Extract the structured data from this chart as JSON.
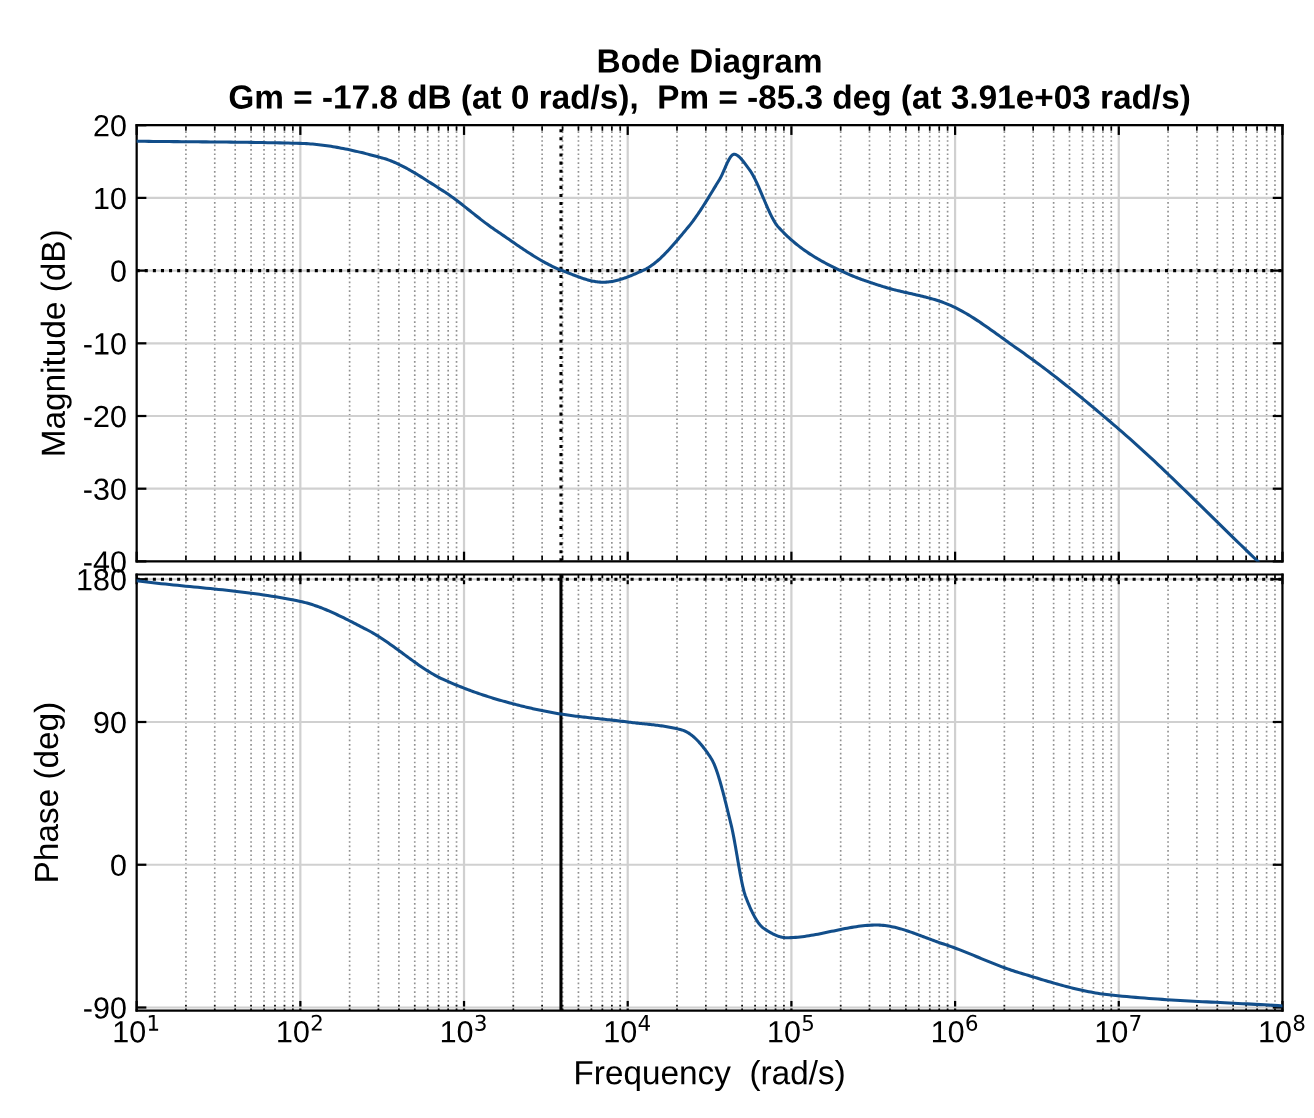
{
  "chart_data": [
    {
      "type": "line",
      "title": "Bode Diagram",
      "subtitle": "Gm = -17.8 dB (at 0 rad/s),  Pm = -85.3 deg (at 3.91e+03 rad/s)",
      "ylabel": "Magnitude (dB)",
      "x": [
        10,
        100,
        316,
        741,
        1549,
        3981,
        7079,
        12589,
        23442,
        36308,
        44668,
        54954,
        83176,
        194984,
        363078,
        851138,
        2454709,
        10000000,
        70794578
      ],
      "series": [
        {
          "color": "#124e8a",
          "values": [
            17.8,
            17.5,
            15.5,
            11,
            5.6,
            0,
            -1.6,
            0.1,
            6,
            12.5,
            16,
            14,
            6,
            0.1,
            -2.2,
            -4.4,
            -10.9,
            -21.8,
            -40
          ]
        }
      ],
      "log": "x",
      "xlim": [
        10,
        100000000
      ],
      "ylim": [
        -40,
        20
      ],
      "yticks": [
        20,
        10,
        0,
        -10,
        -20,
        -30,
        -40
      ],
      "xticks": [
        {
          "value": 10,
          "label": null
        },
        {
          "value": 100,
          "label": null
        },
        {
          "value": 1000,
          "label": null
        },
        {
          "value": 10000,
          "label": null
        },
        {
          "value": 100000,
          "label": null
        },
        {
          "value": 1000000,
          "label": null
        },
        {
          "value": 10000000,
          "label": null
        },
        {
          "value": 100000000,
          "label": null
        }
      ],
      "tick_labels": "y",
      "grid": true,
      "line_style": "solid",
      "ref_lines": [
        {
          "axis": "y",
          "value": 0,
          "line_style": "dotted",
          "color": "#000000"
        },
        {
          "axis": "x",
          "value": 3910,
          "line_style": "dotted",
          "color": "#000000"
        }
      ]
    },
    {
      "type": "line",
      "xlabel": "Frequency  (rad/s)",
      "ylabel": "Phase (deg)",
      "x": [
        10,
        100,
        257,
        741,
        1905,
        3910,
        10000,
        21380,
        32359,
        42658,
        52481,
        67608,
        93325,
        331131,
        851138,
        2454709,
        8709636,
        100000000
      ],
      "series": [
        {
          "color": "#124e8a",
          "values": [
            179,
            166,
            148,
            117,
            102,
            95,
            90,
            85,
            67,
            26,
            -20,
            -40,
            -46,
            -38,
            -50,
            -68,
            -82,
            -89
          ]
        }
      ],
      "log": "x",
      "xlim": [
        10,
        100000000
      ],
      "ylim": [
        -92,
        183
      ],
      "yticks": [
        180,
        90,
        0,
        -90
      ],
      "xticks": [
        {
          "value": 10,
          "label": "10$^{1}$"
        },
        {
          "value": 100,
          "label": "10$^{2}$"
        },
        {
          "value": 1000,
          "label": "10$^{3}$"
        },
        {
          "value": 10000,
          "label": "10$^{4}$"
        },
        {
          "value": 100000,
          "label": "10$^{5}$"
        },
        {
          "value": 1000000,
          "label": "10$^{6}$"
        },
        {
          "value": 10000000,
          "label": "10$^{7}$"
        },
        {
          "value": 100000000,
          "label": "10$^{8}$"
        }
      ],
      "grid": true,
      "line_style": "solid",
      "ref_lines": [
        {
          "axis": "y",
          "value": 180,
          "line_style": "dotted",
          "color": "#000000"
        },
        {
          "axis": "x",
          "value": 3910,
          "line_style": "solid",
          "color": "#000000"
        }
      ]
    }
  ]
}
